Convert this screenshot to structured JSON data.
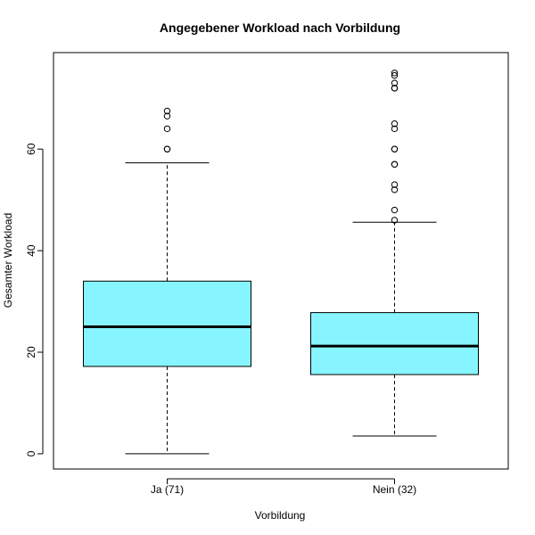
{
  "chart_data": {
    "type": "boxplot",
    "title": "Angegebener Workload nach Vorbildung",
    "xlabel": "Vorbildung",
    "ylabel": "Gesamter Workload",
    "ylim": [
      -3,
      79
    ],
    "yticks": [
      0,
      20,
      40,
      60
    ],
    "grid": false,
    "legend": "none",
    "colors": {
      "box_fill": "#87F5FF",
      "line": "#000000",
      "background": "#ffffff"
    },
    "categories": [
      "Ja (71)",
      "Nein (32)"
    ],
    "boxes": [
      {
        "category": "Ja (71)",
        "whisker_low": 0,
        "q1": 17.2,
        "median": 25,
        "q3": 34,
        "whisker_high": 57.3,
        "outliers": [
          60,
          60,
          64,
          66.5,
          67.5
        ]
      },
      {
        "category": "Nein (32)",
        "whisker_low": 3.5,
        "q1": 15.6,
        "median": 21.2,
        "q3": 27.8,
        "whisker_high": 45.6,
        "outliers": [
          46,
          48,
          52,
          53,
          57,
          57,
          60,
          60,
          64,
          65,
          72,
          72,
          73,
          74.5,
          75
        ]
      }
    ]
  }
}
